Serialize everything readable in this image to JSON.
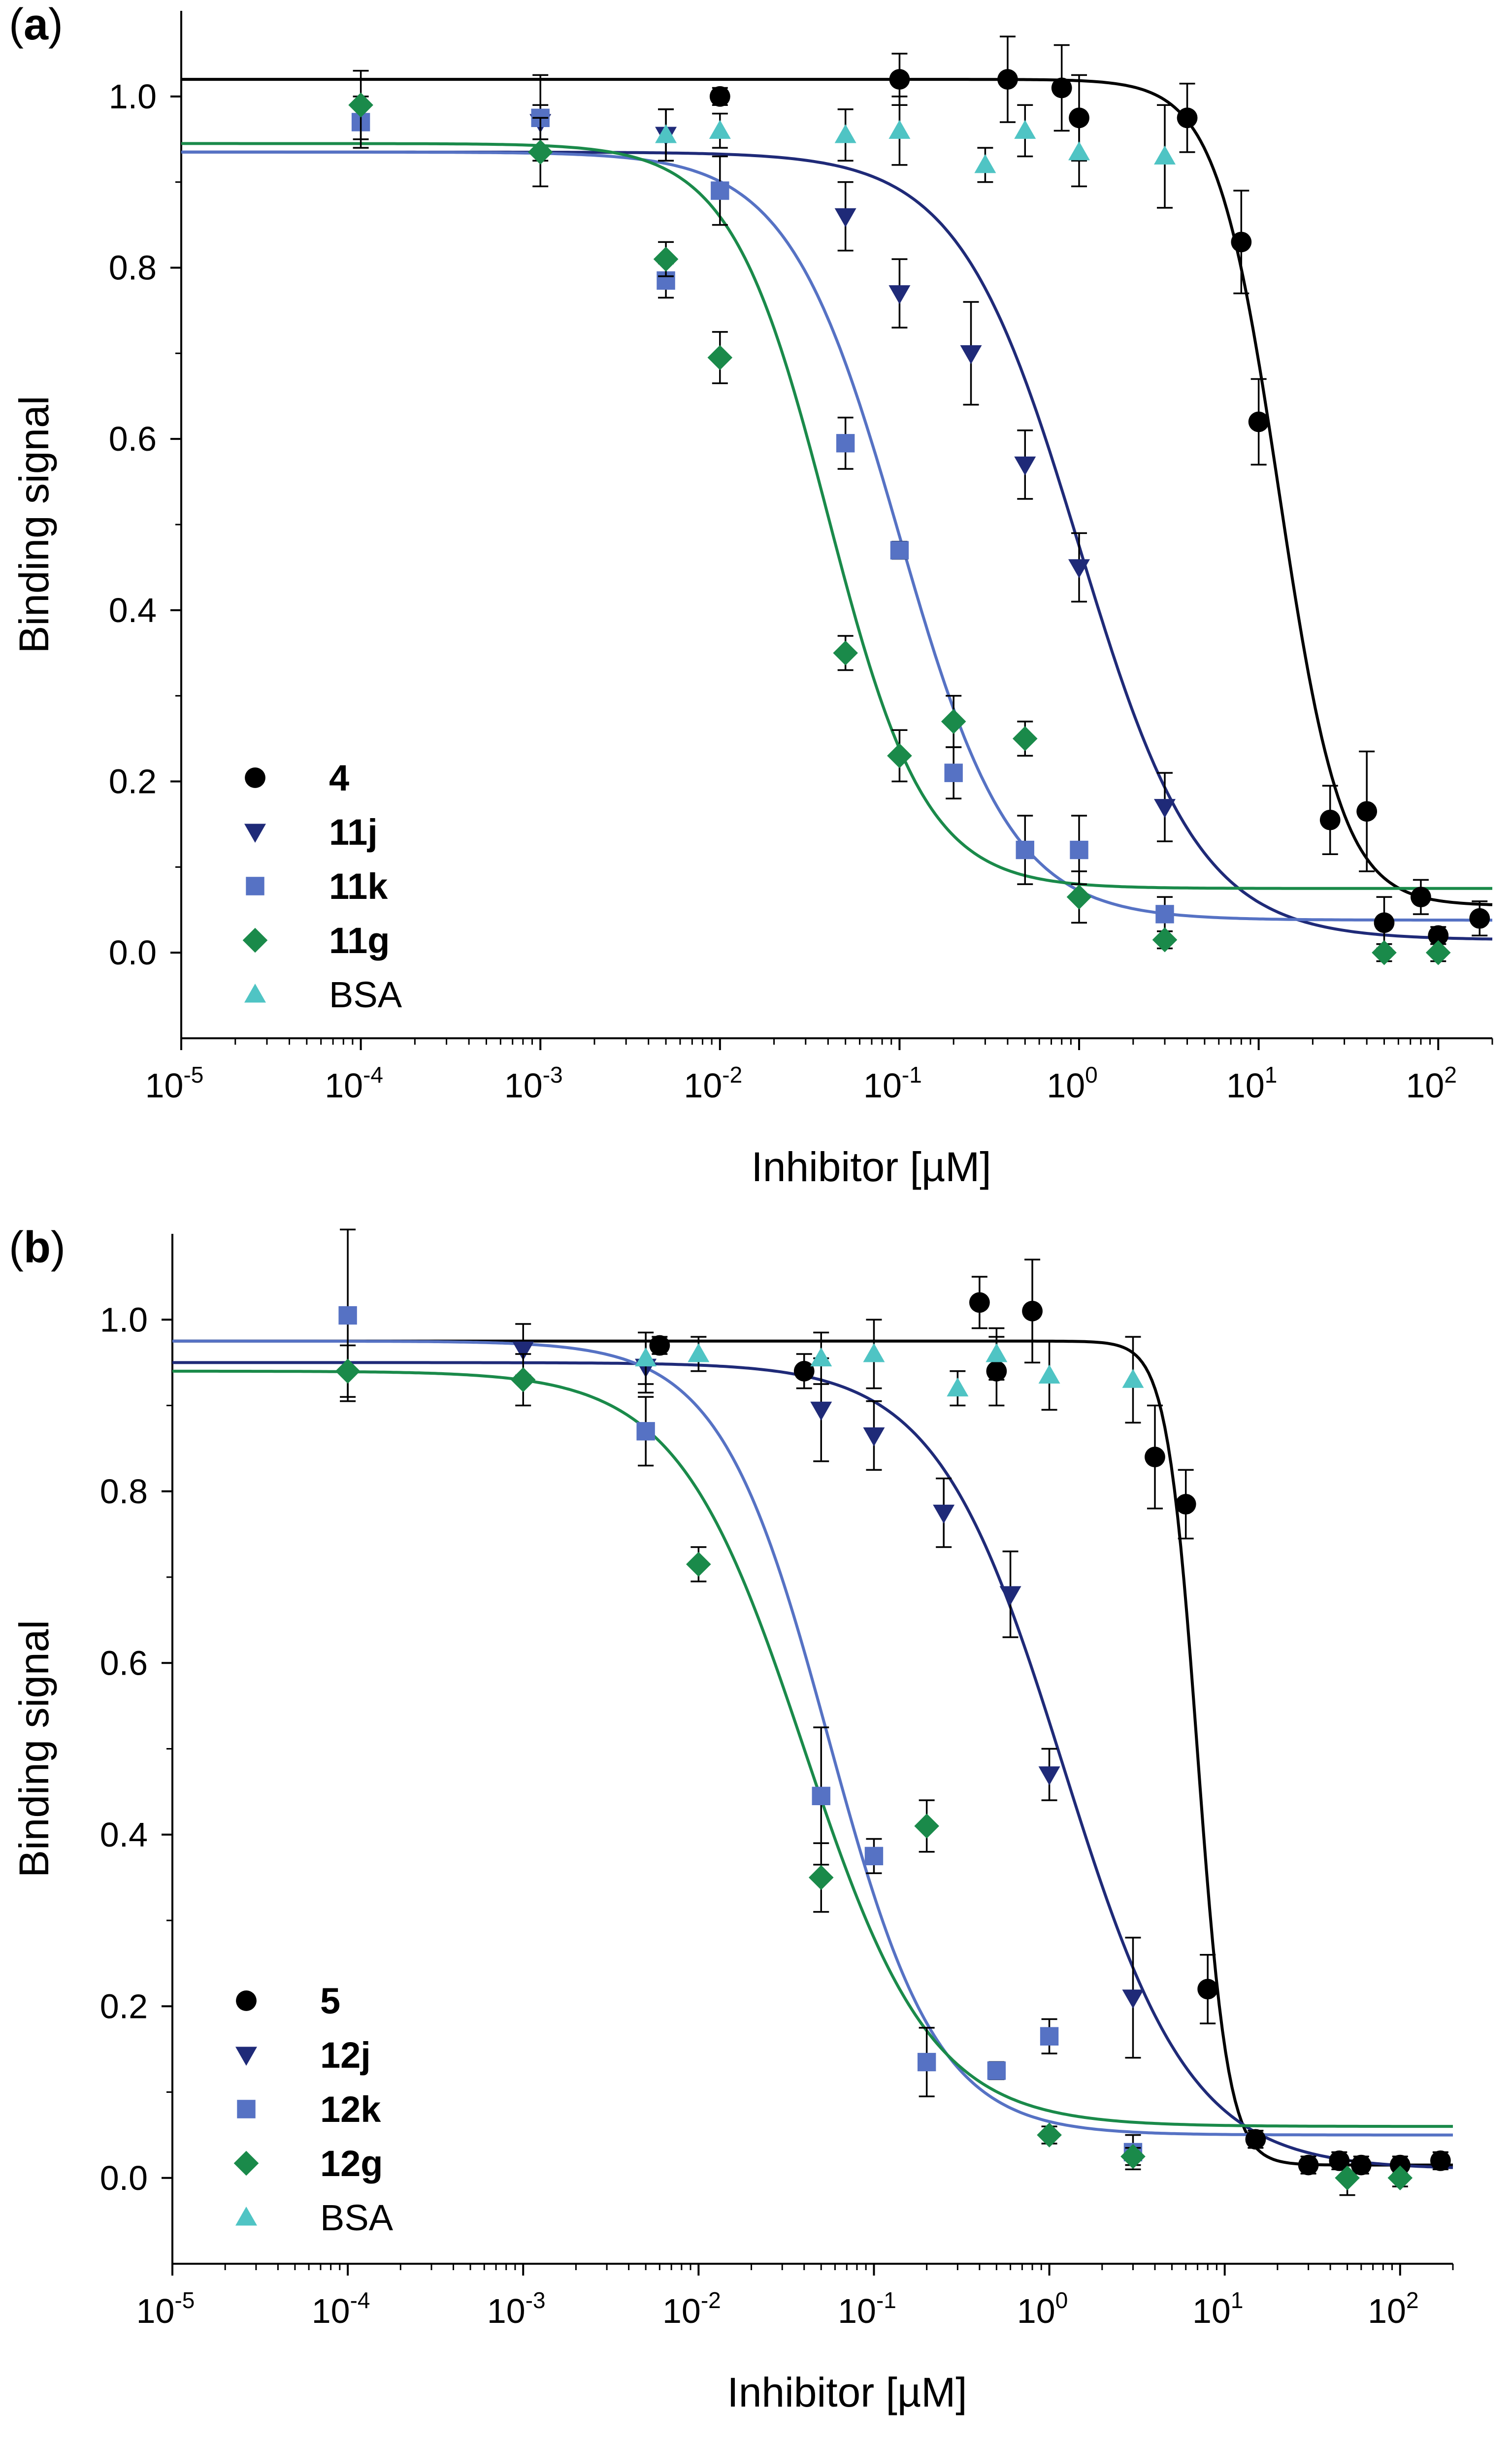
{
  "figure": {
    "description_title": ""
  },
  "chart_data": [
    {
      "type": "scatter",
      "panel_label": "a",
      "xlabel": "Inhibitor [µM]",
      "ylabel": "Binding signal",
      "xscale": "log",
      "xlim": [
        1e-05,
        200
      ],
      "ylim": [
        -0.1,
        1.1
      ],
      "xticks": [
        {
          "base": "10",
          "exp": "-5"
        },
        {
          "base": "10",
          "exp": "-4"
        },
        {
          "base": "10",
          "exp": "-3"
        },
        {
          "base": "10",
          "exp": "-2"
        },
        {
          "base": "10",
          "exp": "-1"
        },
        {
          "base": "10",
          "exp": "0"
        },
        {
          "base": "10",
          "exp": "1"
        },
        {
          "base": "10",
          "exp": "2"
        }
      ],
      "yticks": [
        "0.0",
        "0.2",
        "0.4",
        "0.6",
        "0.8",
        "1.0"
      ],
      "legend_position": "bottom-left",
      "series": [
        {
          "name": "4",
          "bold": true,
          "marker": "circle",
          "color": "#000000",
          "fit": {
            "top": 1.02,
            "bottom": 0.055,
            "ic50": 13,
            "hill": 2.5
          },
          "points": [
            [
              0.01,
              1.0,
              0.01
            ],
            [
              0.1,
              1.02,
              0.03
            ],
            [
              0.4,
              1.02,
              0.05
            ],
            [
              0.8,
              1.01,
              0.05
            ],
            [
              1.0,
              0.975,
              0.05
            ],
            [
              4.0,
              0.975,
              0.04
            ],
            [
              8.0,
              0.83,
              0.06
            ],
            [
              10,
              0.62,
              0.05
            ],
            [
              25,
              0.155,
              0.04
            ],
            [
              40,
              0.165,
              0.07
            ],
            [
              50,
              0.035,
              0.03
            ],
            [
              80,
              0.065,
              0.02
            ],
            [
              100,
              0.02,
              0.01
            ],
            [
              170,
              0.04,
              0.02
            ]
          ]
        },
        {
          "name": "11j",
          "bold": true,
          "marker": "triangle-down",
          "color": "#1f2a78",
          "fit": {
            "top": 0.935,
            "bottom": 0.015,
            "ic50": 1.0,
            "hill": 1.3
          },
          "points": [
            [
              0.001,
              0.97,
              0.02
            ],
            [
              0.005,
              0.955,
              0.03
            ],
            [
              0.05,
              0.86,
              0.04
            ],
            [
              0.1,
              0.77,
              0.04
            ],
            [
              0.25,
              0.7,
              0.06
            ],
            [
              0.5,
              0.57,
              0.04
            ],
            [
              1.0,
              0.45,
              0.04
            ],
            [
              3.0,
              0.17,
              0.04
            ]
          ]
        },
        {
          "name": "11k",
          "bold": true,
          "marker": "square",
          "color": "#5672c4",
          "fit": {
            "top": 0.935,
            "bottom": 0.038,
            "ic50": 0.1,
            "hill": 1.4
          },
          "points": [
            [
              0.0001,
              0.97,
              0.03
            ],
            [
              0.001,
              0.975,
              0.05
            ],
            [
              0.005,
              0.785,
              0.02
            ],
            [
              0.01,
              0.89,
              0.04
            ],
            [
              0.05,
              0.595,
              0.03
            ],
            [
              0.1,
              0.47,
              0.01
            ],
            [
              0.2,
              0.21,
              0.03
            ],
            [
              0.5,
              0.12,
              0.04
            ],
            [
              1.0,
              0.12,
              0.04
            ],
            [
              3.0,
              0.045,
              0.02
            ]
          ]
        },
        {
          "name": "11g",
          "bold": true,
          "marker": "diamond",
          "color": "#1a8a4a",
          "fit": {
            "top": 0.945,
            "bottom": 0.075,
            "ic50": 0.04,
            "hill": 1.6
          },
          "points": [
            [
              0.0001,
              0.99,
              0.04
            ],
            [
              0.001,
              0.935,
              0.04
            ],
            [
              0.005,
              0.81,
              0.02
            ],
            [
              0.01,
              0.695,
              0.03
            ],
            [
              0.05,
              0.35,
              0.02
            ],
            [
              0.1,
              0.23,
              0.03
            ],
            [
              0.2,
              0.27,
              0.03
            ],
            [
              0.5,
              0.25,
              0.02
            ],
            [
              1.0,
              0.065,
              0.03
            ],
            [
              3.0,
              0.015,
              0.01
            ],
            [
              50,
              0.0,
              0.01
            ],
            [
              100,
              0.0,
              0.01
            ]
          ]
        },
        {
          "name": "BSA",
          "bold": false,
          "marker": "triangle-up",
          "color": "#4fc4c4",
          "points": [
            [
              0.005,
              0.955,
              0.03
            ],
            [
              0.01,
              0.96,
              0.02
            ],
            [
              0.05,
              0.955,
              0.03
            ],
            [
              0.1,
              0.96,
              0.04
            ],
            [
              0.3,
              0.92,
              0.02
            ],
            [
              0.5,
              0.96,
              0.03
            ],
            [
              1.0,
              0.935,
              0.04
            ],
            [
              3.0,
              0.93,
              0.06
            ]
          ]
        }
      ]
    },
    {
      "type": "scatter",
      "panel_label": "b",
      "xlabel": "Inhibitor [µM]",
      "ylabel": "Binding signal",
      "xscale": "log",
      "xlim": [
        1e-05,
        200
      ],
      "ylim": [
        -0.1,
        1.1
      ],
      "xticks": [
        {
          "base": "10",
          "exp": "-5"
        },
        {
          "base": "10",
          "exp": "-4"
        },
        {
          "base": "10",
          "exp": "-3"
        },
        {
          "base": "10",
          "exp": "-2"
        },
        {
          "base": "10",
          "exp": "-1"
        },
        {
          "base": "10",
          "exp": "0"
        },
        {
          "base": "10",
          "exp": "1"
        },
        {
          "base": "10",
          "exp": "2"
        }
      ],
      "yticks": [
        "0.0",
        "0.2",
        "0.4",
        "0.6",
        "0.8",
        "1.0"
      ],
      "legend_position": "bottom-left",
      "series": [
        {
          "name": "5",
          "bold": true,
          "marker": "circle",
          "color": "#000000",
          "fit": {
            "top": 0.975,
            "bottom": 0.015,
            "ic50": 7.0,
            "hill": 5
          },
          "points": [
            [
              0.006,
              0.97,
              0.01
            ],
            [
              0.04,
              0.94,
              0.02
            ],
            [
              0.4,
              1.02,
              0.03
            ],
            [
              0.5,
              0.94,
              0.04
            ],
            [
              0.8,
              1.01,
              0.06
            ],
            [
              4.0,
              0.84,
              0.06
            ],
            [
              6.0,
              0.785,
              0.04
            ],
            [
              8.0,
              0.22,
              0.04
            ],
            [
              15,
              0.045,
              0.01
            ],
            [
              30,
              0.015,
              0.01
            ],
            [
              45,
              0.02,
              0.01
            ],
            [
              60,
              0.015,
              0.01
            ],
            [
              100,
              0.015,
              0.01
            ],
            [
              170,
              0.02,
              0.01
            ]
          ]
        },
        {
          "name": "12j",
          "bold": true,
          "marker": "triangle-down",
          "color": "#1f2a78",
          "fit": {
            "top": 0.95,
            "bottom": 0.01,
            "ic50": 1.2,
            "hill": 1.2
          },
          "points": [
            [
              0.001,
              0.965,
              0.03
            ],
            [
              0.005,
              0.945,
              0.03
            ],
            [
              0.05,
              0.895,
              0.06
            ],
            [
              0.1,
              0.865,
              0.04
            ],
            [
              0.25,
              0.775,
              0.04
            ],
            [
              0.6,
              0.68,
              0.05
            ],
            [
              1.0,
              0.47,
              0.03
            ],
            [
              3.0,
              0.21,
              0.07
            ]
          ]
        },
        {
          "name": "12k",
          "bold": true,
          "marker": "square",
          "color": "#5672c4",
          "fit": {
            "top": 0.975,
            "bottom": 0.05,
            "ic50": 0.055,
            "hill": 1.4
          },
          "points": [
            [
              0.0001,
              1.005,
              0.1
            ],
            [
              0.005,
              0.87,
              0.04
            ],
            [
              0.05,
              0.445,
              0.08
            ],
            [
              0.1,
              0.375,
              0.02
            ],
            [
              0.2,
              0.135,
              0.04
            ],
            [
              0.5,
              0.125,
              0.01
            ],
            [
              1.0,
              0.165,
              0.02
            ],
            [
              3.0,
              0.03,
              0.02
            ]
          ]
        },
        {
          "name": "12g",
          "bold": true,
          "marker": "diamond",
          "color": "#1a8a4a",
          "fit": {
            "top": 0.94,
            "bottom": 0.06,
            "ic50": 0.04,
            "hill": 1.2
          },
          "points": [
            [
              0.0001,
              0.94,
              0.03
            ],
            [
              0.001,
              0.93,
              0.03
            ],
            [
              0.01,
              0.715,
              0.02
            ],
            [
              0.05,
              0.35,
              0.04
            ],
            [
              0.2,
              0.41,
              0.03
            ],
            [
              1.0,
              0.05,
              0.01
            ],
            [
              3.0,
              0.025,
              0.01
            ],
            [
              50,
              0.0,
              0.02
            ],
            [
              100,
              0.0,
              0.01
            ]
          ]
        },
        {
          "name": "BSA",
          "bold": false,
          "marker": "triangle-up",
          "color": "#4fc4c4",
          "points": [
            [
              0.005,
              0.955,
              0.03
            ],
            [
              0.01,
              0.96,
              0.02
            ],
            [
              0.05,
              0.955,
              0.03
            ],
            [
              0.1,
              0.96,
              0.04
            ],
            [
              0.3,
              0.92,
              0.02
            ],
            [
              0.5,
              0.96,
              0.03
            ],
            [
              1.0,
              0.935,
              0.04
            ],
            [
              3.0,
              0.93,
              0.05
            ]
          ]
        }
      ]
    }
  ]
}
